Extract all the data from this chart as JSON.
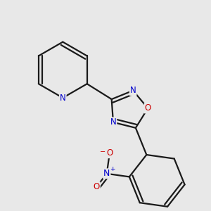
{
  "bg_color": "#e8e8e8",
  "bond_color": "#1a1a1a",
  "bond_width": 1.6,
  "atom_colors": {
    "N": "#0000cc",
    "O": "#cc0000"
  },
  "font_size": 8.5,
  "fig_bg": "#e8e8e8"
}
